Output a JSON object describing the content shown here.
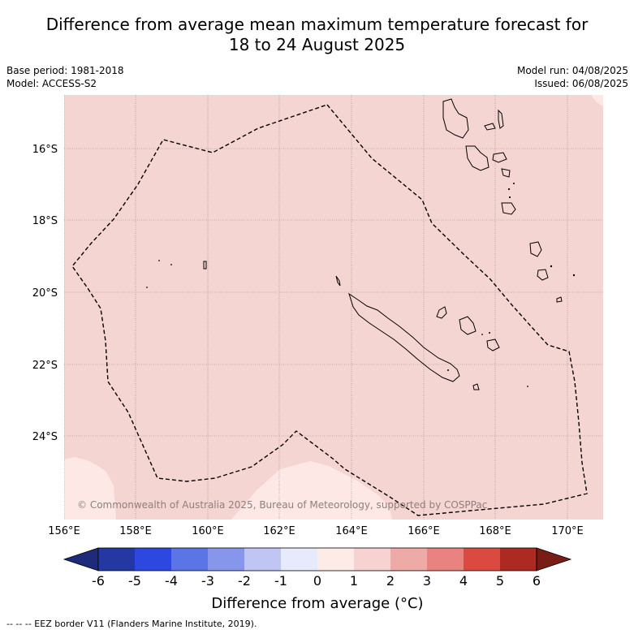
{
  "title_line1": "Difference from average mean maximum temperature forecast for",
  "title_line2": "18 to 24 August 2025",
  "meta": {
    "base_period": "Base period: 1981-2018",
    "model": "Model: ACCESS-S2",
    "model_run": "Model run: 04/08/2025",
    "issued": "Issued: 06/08/2025"
  },
  "map": {
    "lat_labels": [
      "16°S",
      "18°S",
      "20°S",
      "22°S",
      "24°S"
    ],
    "lon_labels": [
      "156°E",
      "158°E",
      "160°E",
      "162°E",
      "164°E",
      "166°E",
      "168°E",
      "170°E"
    ],
    "copyright": "© Commonwealth of Australia 2025, Bureau of Meteorology, supported by COSPPac",
    "anomaly_colors": {
      "0_to_1": "#fde8e6",
      "1_to_2": "#f5d5d2"
    }
  },
  "colorbar": {
    "ticks": [
      "-6",
      "-5",
      "-4",
      "-3",
      "-2",
      "-1",
      "0",
      "1",
      "2",
      "3",
      "4",
      "5",
      "6"
    ],
    "colors": [
      "#2338a3",
      "#2c48e0",
      "#5b74e6",
      "#8596eb",
      "#c0c6f4",
      "#e7eafb",
      "#fdebe8",
      "#f6d3d0",
      "#eeaaa6",
      "#e8837f",
      "#db4a40",
      "#ad2a22"
    ],
    "low_extend_color": "#1e2a7a",
    "high_extend_color": "#7a1c16",
    "label": "Difference from average (°C)"
  },
  "footer": "--  --  -- EEZ border V11 (Flanders Marine Institute, 2019)."
}
